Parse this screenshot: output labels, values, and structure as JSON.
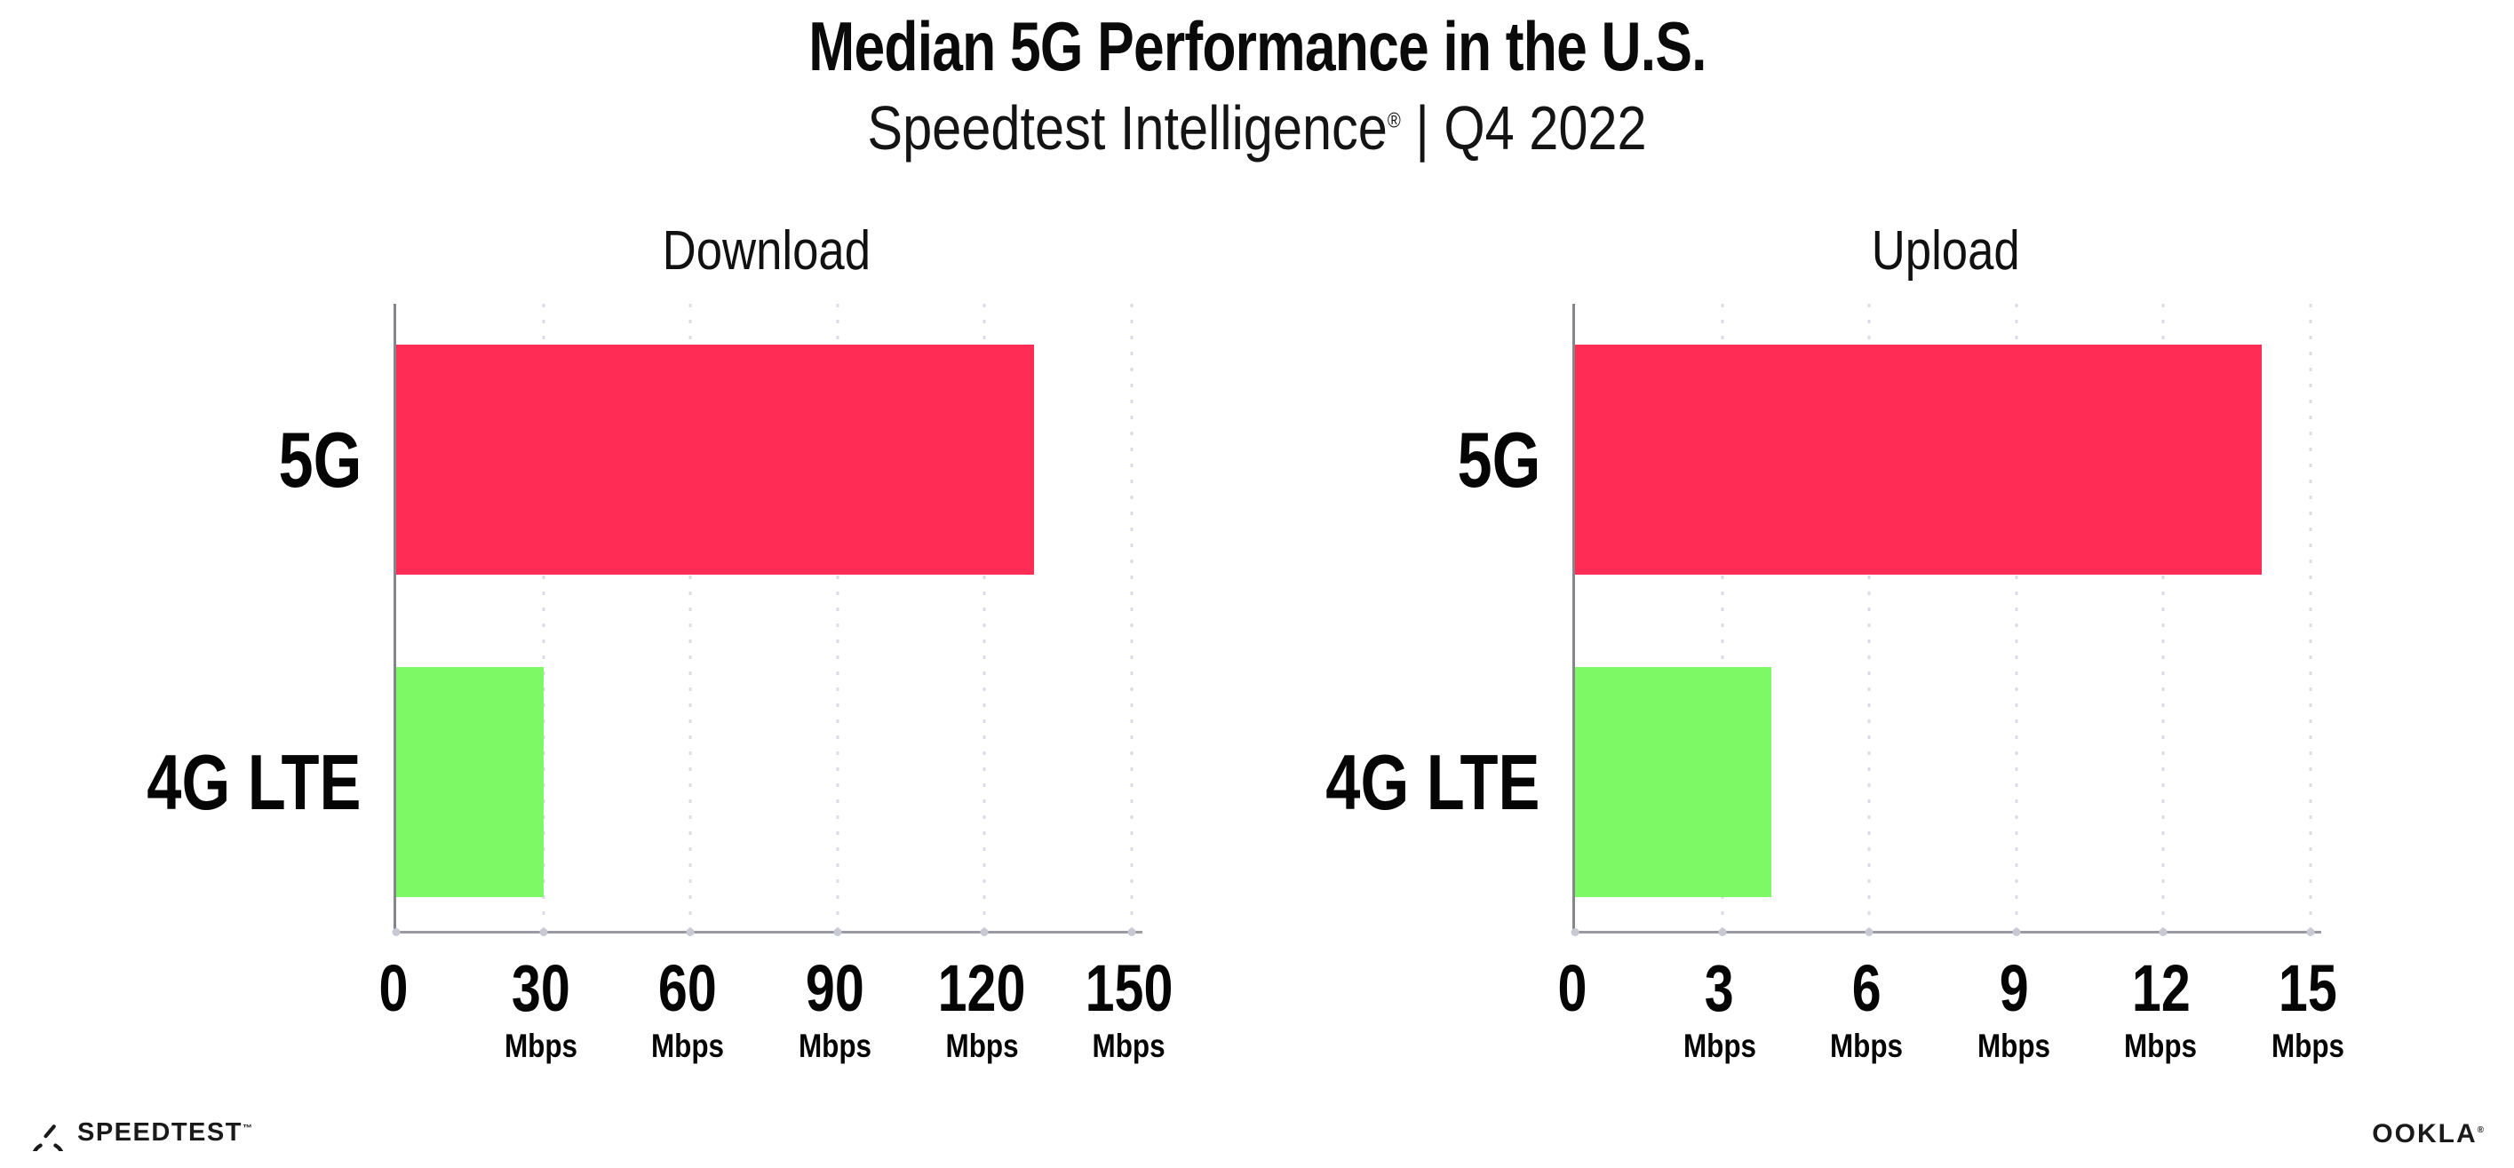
{
  "header": {
    "title": "Median 5G Performance in the U.S.",
    "subtitle_brand": "Speedtest Intelligence",
    "subtitle_reg": "®",
    "subtitle_rest": " | Q4 2022"
  },
  "chart_data": [
    {
      "type": "bar",
      "orientation": "horizontal",
      "title": "Download",
      "categories": [
        "5G",
        "4G LTE"
      ],
      "values": [
        130,
        30
      ],
      "unit": "Mbps",
      "xlim": [
        0,
        150
      ],
      "xticks": [
        0,
        30,
        60,
        90,
        120,
        150
      ],
      "bar_colors": [
        "#FF2D55",
        "#7DF966"
      ],
      "grid": "dotted-vertical",
      "legend": "none"
    },
    {
      "type": "bar",
      "orientation": "horizontal",
      "title": "Upload",
      "categories": [
        "5G",
        "4G LTE"
      ],
      "values": [
        14,
        4
      ],
      "unit": "Mbps",
      "xlim": [
        0,
        15
      ],
      "xticks": [
        0,
        3,
        6,
        9,
        12,
        15
      ],
      "bar_colors": [
        "#FF2D55",
        "#7DF966"
      ],
      "grid": "dotted-vertical",
      "legend": "none"
    }
  ],
  "footer": {
    "speedtest_label": "SPEEDTEST",
    "speedtest_mark": "™",
    "ookla_label": "OOKLA",
    "ookla_mark": "®"
  },
  "colors": {
    "bar_5g": "#FF2D55",
    "bar_4g_lte": "#7DF966",
    "axis_line": "#85858d",
    "gridline_dots": "#dcdce8",
    "text": "#0a0a0a"
  }
}
